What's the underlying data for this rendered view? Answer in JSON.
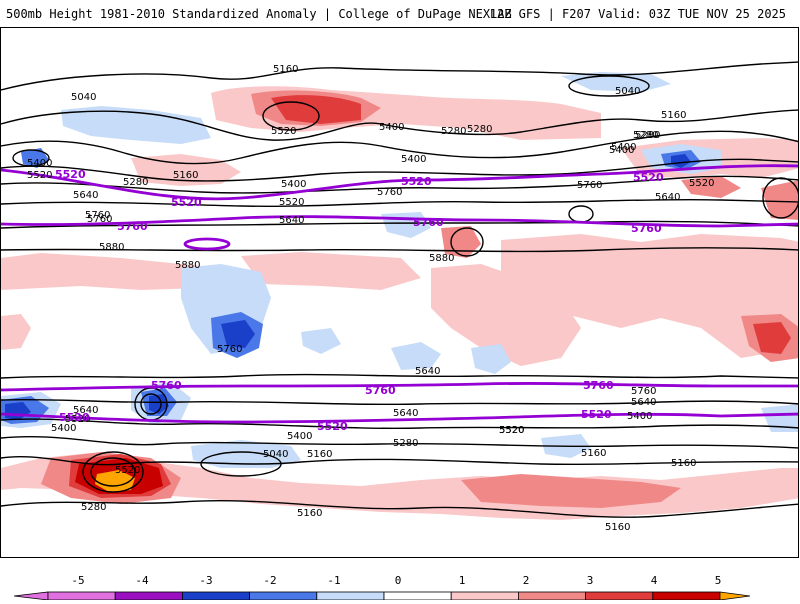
{
  "header": {
    "title_left": "500mb Height 1981-2010 Standardized Anomaly | College of DuPage NEXLAB",
    "title_right": "12Z GFS | F207 Valid: 03Z TUE NOV 25 2025"
  },
  "colors": {
    "neg5": "#e070e0",
    "neg4": "#9a10c0",
    "neg3": "#1a3fc8",
    "neg2": "#4a78e8",
    "neg1": "#c6dcf8",
    "zero": "#ffffff",
    "pos1": "#fac8c8",
    "pos2": "#f08888",
    "pos3": "#e03c3c",
    "pos4": "#c80000",
    "pos5": "#ffa500",
    "contour_black": "#000000",
    "contour_purple": "#9400d3"
  },
  "colorbar": {
    "ticks": [
      "-5",
      "-4",
      "-3",
      "-2",
      "-1",
      "0",
      "1",
      "2",
      "3",
      "4",
      "5"
    ]
  },
  "contour_labels": {
    "black": [
      "5160",
      "5040",
      "5040",
      "5400",
      "5520",
      "5640",
      "5760",
      "5880",
      "5280",
      "5160",
      "5520",
      "5400",
      "5280",
      "5400",
      "5520",
      "5400",
      "5280",
      "5160",
      "5280",
      "5400",
      "5520",
      "5760",
      "5880",
      "5760",
      "5640",
      "5760",
      "5640",
      "5400",
      "5280",
      "5640",
      "5520",
      "5400",
      "5040",
      "5160",
      "5520",
      "5280",
      "5160",
      "5280",
      "5640",
      "5400",
      "5520",
      "5640",
      "5760",
      "5400",
      "5160",
      "5160",
      "5160",
      "5520",
      "5640",
      "5760",
      "5880"
    ],
    "purple": [
      "5520",
      "5520",
      "5520",
      "5520",
      "5760",
      "5760",
      "5760",
      "5760",
      "5760",
      "5760",
      "5520",
      "5520",
      "5520"
    ]
  }
}
